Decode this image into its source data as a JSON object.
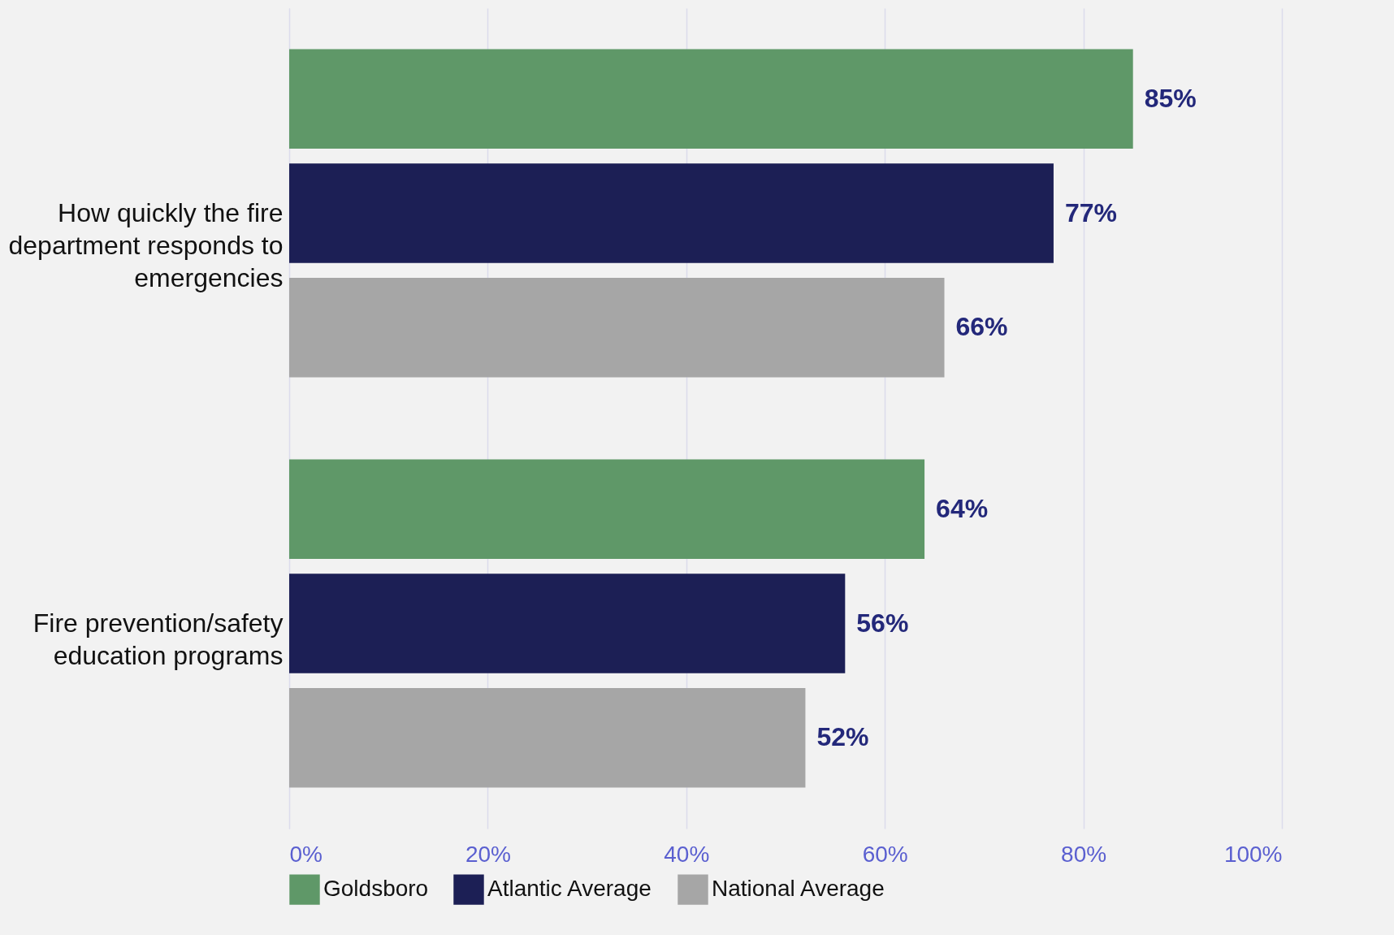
{
  "chart_data": {
    "type": "bar",
    "orientation": "horizontal",
    "categories": [
      "How quickly the fire department responds to emergencies",
      "Fire prevention/safety education programs"
    ],
    "series": [
      {
        "name": "Goldsboro",
        "color": "#5f9868",
        "values": [
          85,
          64
        ]
      },
      {
        "name": "Atlantic Average",
        "color": "#1c1f55",
        "values": [
          77,
          56
        ]
      },
      {
        "name": "National Average",
        "color": "#a6a6a6",
        "values": [
          66,
          52
        ]
      }
    ],
    "value_labels": [
      [
        "85%",
        "64%"
      ],
      [
        "77%",
        "56%"
      ],
      [
        "66%",
        "52%"
      ]
    ],
    "xlim": [
      0,
      100
    ],
    "xticks": [
      {
        "value": 0,
        "label": "0%"
      },
      {
        "value": 20,
        "label": "20%"
      },
      {
        "value": 40,
        "label": "40%"
      },
      {
        "value": 60,
        "label": "60%"
      },
      {
        "value": 80,
        "label": "80%"
      },
      {
        "value": 100,
        "label": "100%"
      }
    ],
    "grid": "x",
    "legend": "bottom"
  }
}
